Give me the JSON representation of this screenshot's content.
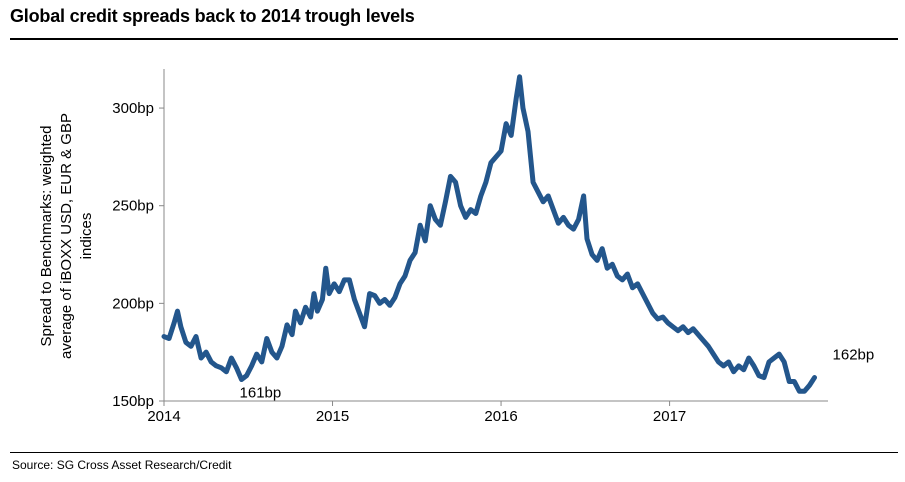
{
  "title": "Global credit spreads back to 2014 trough levels",
  "source": "Source: SG Cross Asset Research/Credit",
  "chart_data": {
    "type": "line",
    "title": "Global credit spreads back to 2014 trough levels",
    "ylabel": [
      "Spread to Benchmarks: weighted",
      "average of iBOXX USD, EUR & GBP",
      "indices"
    ],
    "xlabel": "",
    "xlim": [
      2014.0,
      2017.94
    ],
    "ylim": [
      150,
      320
    ],
    "yticks": [
      150,
      200,
      250,
      300
    ],
    "ytick_labels": [
      "150bp",
      "200bp",
      "250bp",
      "300bp"
    ],
    "xticks": [
      2014,
      2015,
      2016,
      2017
    ],
    "xtick_labels": [
      "2014",
      "2015",
      "2016",
      "2017"
    ],
    "grid": false,
    "color": "#23568c",
    "annotations": [
      {
        "text": "161bp",
        "x": 2014.46,
        "y": 161
      },
      {
        "text": "162bp",
        "x": 2017.86,
        "y": 162
      }
    ],
    "series": [
      {
        "values": [
          [
            2014.0,
            183
          ],
          [
            2014.03,
            182
          ],
          [
            2014.06,
            190
          ],
          [
            2014.08,
            196
          ],
          [
            2014.1,
            188
          ],
          [
            2014.13,
            180
          ],
          [
            2014.16,
            178
          ],
          [
            2014.19,
            183
          ],
          [
            2014.22,
            172
          ],
          [
            2014.25,
            175
          ],
          [
            2014.28,
            170
          ],
          [
            2014.31,
            168
          ],
          [
            2014.34,
            167
          ],
          [
            2014.37,
            165
          ],
          [
            2014.4,
            172
          ],
          [
            2014.43,
            167
          ],
          [
            2014.46,
            161
          ],
          [
            2014.49,
            163
          ],
          [
            2014.52,
            168
          ],
          [
            2014.55,
            174
          ],
          [
            2014.58,
            170
          ],
          [
            2014.61,
            182
          ],
          [
            2014.64,
            175
          ],
          [
            2014.67,
            172
          ],
          [
            2014.7,
            178
          ],
          [
            2014.73,
            189
          ],
          [
            2014.76,
            184
          ],
          [
            2014.78,
            196
          ],
          [
            2014.81,
            190
          ],
          [
            2014.84,
            198
          ],
          [
            2014.87,
            193
          ],
          [
            2014.89,
            205
          ],
          [
            2014.91,
            196
          ],
          [
            2014.94,
            202
          ],
          [
            2014.96,
            218
          ],
          [
            2014.98,
            205
          ],
          [
            2015.01,
            210
          ],
          [
            2015.04,
            206
          ],
          [
            2015.07,
            212
          ],
          [
            2015.1,
            212
          ],
          [
            2015.13,
            202
          ],
          [
            2015.16,
            195
          ],
          [
            2015.19,
            188
          ],
          [
            2015.22,
            205
          ],
          [
            2015.25,
            204
          ],
          [
            2015.28,
            200
          ],
          [
            2015.31,
            202
          ],
          [
            2015.34,
            199
          ],
          [
            2015.37,
            203
          ],
          [
            2015.4,
            210
          ],
          [
            2015.43,
            214
          ],
          [
            2015.46,
            222
          ],
          [
            2015.49,
            226
          ],
          [
            2015.52,
            240
          ],
          [
            2015.55,
            232
          ],
          [
            2015.58,
            250
          ],
          [
            2015.61,
            243
          ],
          [
            2015.64,
            240
          ],
          [
            2015.67,
            252
          ],
          [
            2015.7,
            265
          ],
          [
            2015.73,
            262
          ],
          [
            2015.76,
            250
          ],
          [
            2015.79,
            244
          ],
          [
            2015.82,
            248
          ],
          [
            2015.85,
            246
          ],
          [
            2015.88,
            255
          ],
          [
            2015.91,
            262
          ],
          [
            2015.94,
            272
          ],
          [
            2015.97,
            275
          ],
          [
            2016.0,
            278
          ],
          [
            2016.03,
            292
          ],
          [
            2016.06,
            286
          ],
          [
            2016.09,
            305
          ],
          [
            2016.11,
            316
          ],
          [
            2016.13,
            300
          ],
          [
            2016.16,
            288
          ],
          [
            2016.19,
            262
          ],
          [
            2016.22,
            257
          ],
          [
            2016.25,
            252
          ],
          [
            2016.28,
            255
          ],
          [
            2016.31,
            248
          ],
          [
            2016.34,
            241
          ],
          [
            2016.37,
            244
          ],
          [
            2016.4,
            240
          ],
          [
            2016.43,
            238
          ],
          [
            2016.46,
            243
          ],
          [
            2016.49,
            255
          ],
          [
            2016.51,
            233
          ],
          [
            2016.54,
            225
          ],
          [
            2016.57,
            222
          ],
          [
            2016.6,
            228
          ],
          [
            2016.63,
            218
          ],
          [
            2016.66,
            220
          ],
          [
            2016.69,
            214
          ],
          [
            2016.72,
            212
          ],
          [
            2016.75,
            215
          ],
          [
            2016.78,
            208
          ],
          [
            2016.81,
            210
          ],
          [
            2016.84,
            205
          ],
          [
            2016.87,
            200
          ],
          [
            2016.9,
            195
          ],
          [
            2016.93,
            192
          ],
          [
            2016.96,
            193
          ],
          [
            2016.99,
            190
          ],
          [
            2017.02,
            188
          ],
          [
            2017.05,
            186
          ],
          [
            2017.08,
            188
          ],
          [
            2017.11,
            185
          ],
          [
            2017.14,
            187
          ],
          [
            2017.17,
            184
          ],
          [
            2017.2,
            181
          ],
          [
            2017.23,
            178
          ],
          [
            2017.26,
            174
          ],
          [
            2017.29,
            170
          ],
          [
            2017.32,
            168
          ],
          [
            2017.35,
            170
          ],
          [
            2017.38,
            165
          ],
          [
            2017.41,
            168
          ],
          [
            2017.44,
            166
          ],
          [
            2017.47,
            172
          ],
          [
            2017.5,
            168
          ],
          [
            2017.53,
            163
          ],
          [
            2017.56,
            162
          ],
          [
            2017.59,
            170
          ],
          [
            2017.62,
            172
          ],
          [
            2017.65,
            174
          ],
          [
            2017.68,
            170
          ],
          [
            2017.71,
            160
          ],
          [
            2017.74,
            160
          ],
          [
            2017.77,
            155
          ],
          [
            2017.8,
            155
          ],
          [
            2017.83,
            158
          ],
          [
            2017.86,
            162
          ]
        ]
      }
    ]
  }
}
